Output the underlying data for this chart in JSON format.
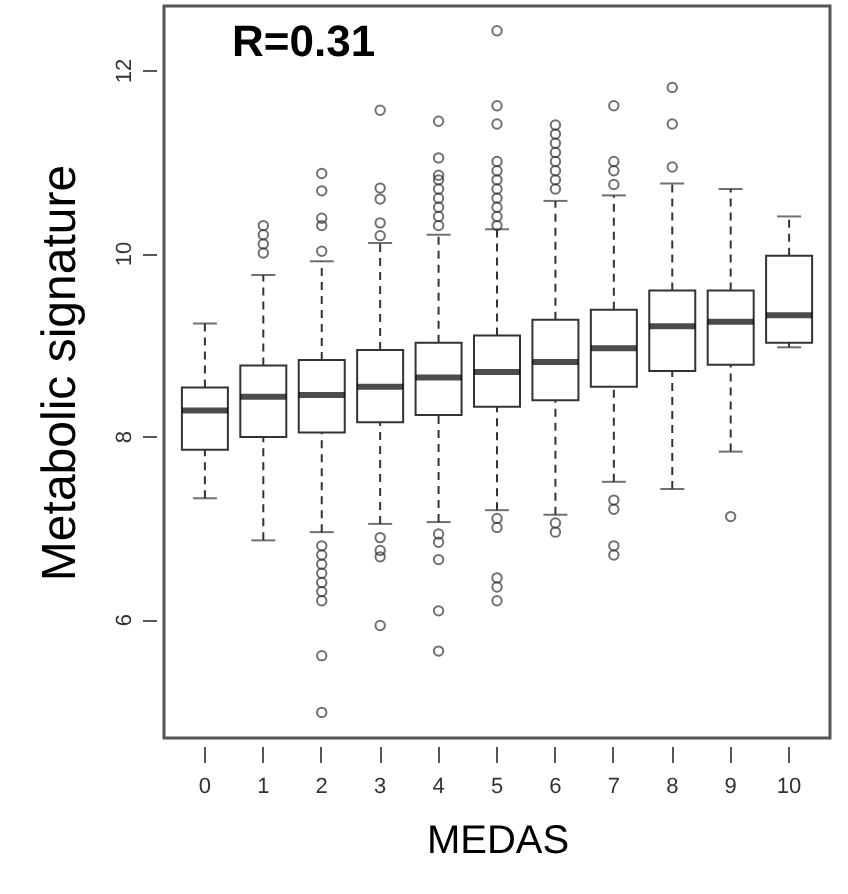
{
  "chart_data": {
    "type": "box",
    "xlabel": "MEDAS",
    "ylabel": "Metabolic signature",
    "annotations": [
      "R=0.31"
    ],
    "categories": [
      "0",
      "1",
      "2",
      "3",
      "4",
      "5",
      "6",
      "7",
      "8",
      "9",
      "10"
    ],
    "ylim": [
      4.7,
      12.7
    ],
    "yticks": [
      6,
      8,
      10,
      12
    ],
    "boxes": [
      {
        "low": 7.32,
        "q1": 7.85,
        "median": 8.28,
        "q3": 8.53,
        "high": 9.23
      },
      {
        "low": 6.86,
        "q1": 7.99,
        "median": 8.43,
        "q3": 8.77,
        "high": 9.76,
        "outliers": [
          10.3,
          10.2,
          10.1,
          10.0
        ]
      },
      {
        "low": 6.95,
        "q1": 8.04,
        "median": 8.45,
        "q3": 8.83,
        "high": 9.91,
        "outliers": [
          10.87,
          10.68,
          10.38,
          10.3,
          10.02,
          6.8,
          6.7,
          6.6,
          6.5,
          6.4,
          6.3,
          6.2,
          5.6,
          4.98
        ]
      },
      {
        "low": 7.04,
        "q1": 8.15,
        "median": 8.54,
        "q3": 8.94,
        "high": 10.11,
        "outliers": [
          11.56,
          10.71,
          10.59,
          10.33,
          10.19,
          6.89,
          6.75,
          6.68,
          5.93
        ]
      },
      {
        "low": 7.06,
        "q1": 8.23,
        "median": 8.64,
        "q3": 9.02,
        "high": 10.2,
        "outliers": [
          11.44,
          11.04,
          10.85,
          10.8,
          10.7,
          10.6,
          10.5,
          10.4,
          10.3,
          6.93,
          6.84,
          6.65,
          6.09,
          5.65
        ]
      },
      {
        "low": 7.19,
        "q1": 8.32,
        "median": 8.7,
        "q3": 9.1,
        "high": 10.26,
        "outliers": [
          12.43,
          11.61,
          11.41,
          11.0,
          10.9,
          10.8,
          10.7,
          10.6,
          10.5,
          10.4,
          10.3,
          7.1,
          7.0,
          6.45,
          6.35,
          6.2
        ]
      },
      {
        "low": 7.14,
        "q1": 8.39,
        "median": 8.81,
        "q3": 9.27,
        "high": 10.57,
        "outliers": [
          11.4,
          11.3,
          11.2,
          11.1,
          11.0,
          10.9,
          10.8,
          10.7,
          7.05,
          6.95
        ]
      },
      {
        "low": 7.5,
        "q1": 8.54,
        "median": 8.96,
        "q3": 9.38,
        "high": 10.63,
        "outliers": [
          11.61,
          11.0,
          10.9,
          10.75,
          7.3,
          7.2,
          6.8,
          6.7
        ]
      },
      {
        "low": 7.42,
        "q1": 8.71,
        "median": 9.2,
        "q3": 9.59,
        "high": 10.76,
        "outliers": [
          11.81,
          11.41,
          10.94
        ]
      },
      {
        "low": 7.83,
        "q1": 8.78,
        "median": 9.25,
        "q3": 9.59,
        "high": 10.7,
        "outliers": [
          7.12
        ]
      },
      {
        "low": 8.97,
        "q1": 9.02,
        "median": 9.32,
        "q3": 9.97,
        "high": 10.4
      }
    ]
  }
}
